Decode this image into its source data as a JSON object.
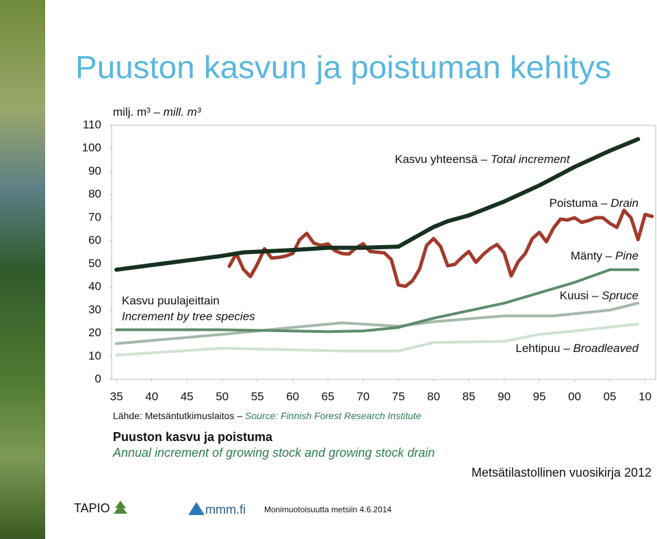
{
  "title": "Puuston kasvun ja poistuman kehitys",
  "chart_data": {
    "type": "line",
    "unit_label": "milj. m³ –",
    "unit_label_en": "mill. m³",
    "group_label": "Kasvu puulajeittain",
    "group_label_en": "Increment by tree species",
    "xlim": [
      1934.3,
      2011.5
    ],
    "xticks": [
      {
        "value": 1935,
        "label": "35"
      },
      {
        "value": 1940,
        "label": "40"
      },
      {
        "value": 1945,
        "label": "45"
      },
      {
        "value": 1950,
        "label": "50"
      },
      {
        "value": 1955,
        "label": "55"
      },
      {
        "value": 1960,
        "label": "60"
      },
      {
        "value": 1965,
        "label": "65"
      },
      {
        "value": 1970,
        "label": "70"
      },
      {
        "value": 1975,
        "label": "75"
      },
      {
        "value": 1980,
        "label": "80"
      },
      {
        "value": 1985,
        "label": "85"
      },
      {
        "value": 1990,
        "label": "90"
      },
      {
        "value": 1995,
        "label": "95"
      },
      {
        "value": 2000,
        "label": "00"
      },
      {
        "value": 2005,
        "label": "05"
      },
      {
        "value": 2010,
        "label": "10"
      }
    ],
    "ylim": [
      0,
      110
    ],
    "yticks": [
      0,
      10,
      20,
      30,
      40,
      50,
      60,
      70,
      80,
      90,
      100,
      110
    ],
    "grid": false,
    "series": [
      {
        "name": "Lehtipuu –",
        "name_en": "Broadleaved",
        "color": "#cfe2d1",
        "x": [
          1935,
          1950,
          1960,
          1967,
          1975,
          1980,
          1990,
          1995,
          2000,
          2009
        ],
        "values": [
          10.5,
          13.5,
          12.8,
          12.3,
          12.3,
          16,
          16.5,
          19.5,
          21,
          24
        ]
      },
      {
        "name": "Kuusi –",
        "name_en": "Spruce",
        "color": "#a3b9a8",
        "x": [
          1935,
          1950,
          1960,
          1967,
          1975,
          1980,
          1990,
          1997,
          2005,
          2009
        ],
        "values": [
          15.5,
          19.5,
          22.5,
          24.5,
          23,
          25,
          27.5,
          27.5,
          30,
          33
        ]
      },
      {
        "name": "Mänty –",
        "name_en": "Pine",
        "color": "#5e8c6b",
        "x": [
          1935,
          1950,
          1960,
          1965,
          1970,
          1975,
          1980,
          1990,
          2000,
          2005,
          2009
        ],
        "values": [
          21.5,
          21.5,
          21,
          20.7,
          21,
          22.5,
          26.5,
          33,
          42,
          47.5,
          47.5
        ]
      },
      {
        "name": "Poistuma –",
        "name_en": "Drain",
        "color": "#a23a2b",
        "x": [
          1951,
          1952,
          1953,
          1954,
          1955,
          1956,
          1957,
          1958,
          1959,
          1960,
          1961,
          1962,
          1963,
          1964,
          1965,
          1966,
          1967,
          1968,
          1969,
          1970,
          1971,
          1972,
          1973,
          1974,
          1975,
          1976,
          1977,
          1978,
          1979,
          1980,
          1981,
          1982,
          1983,
          1984,
          1985,
          1986,
          1987,
          1988,
          1989,
          1990,
          1991,
          1992,
          1993,
          1994,
          1995,
          1996,
          1997,
          1998,
          1999,
          2000,
          2001,
          2002,
          2003,
          2004,
          2005,
          2006,
          2007,
          2008,
          2009,
          2010,
          2011
        ],
        "values": [
          49,
          54.5,
          47.7,
          44.5,
          50,
          56.6,
          52.5,
          52.8,
          53.4,
          54.5,
          60.5,
          63.2,
          59,
          58,
          58.7,
          55.7,
          54.5,
          54.3,
          57,
          58.7,
          55.4,
          55.1,
          54.8,
          51.9,
          40.9,
          40.3,
          42.7,
          47.7,
          58,
          61,
          57.5,
          49.2,
          49.8,
          52.8,
          55.4,
          50.7,
          54,
          56.6,
          58.4,
          54.8,
          44.8,
          51,
          54.5,
          61,
          63.7,
          59.6,
          65.5,
          69.4,
          69,
          70,
          68,
          68.8,
          70,
          70,
          67.6,
          65.8,
          73.2,
          70,
          60.5,
          71.4,
          70.6
        ]
      },
      {
        "name": "Kasvu yhteensä –",
        "name_en": "Total increment",
        "color": "#17301f",
        "x": [
          1935,
          1940,
          1945,
          1950,
          1953,
          1960,
          1965,
          1970,
          1975,
          1980,
          1982,
          1985,
          1990,
          1995,
          2000,
          2005,
          2009
        ],
        "values": [
          47.5,
          49.5,
          51.5,
          53.5,
          55,
          56,
          57,
          57,
          57.5,
          66,
          68.5,
          71,
          77,
          84,
          92,
          99,
          104
        ]
      }
    ],
    "source": "Lähde: Metsäntutkimuslaitos –",
    "source_en": "Source: Finnish Forest Research Institute",
    "caption": "Puuston kasvu ja poistuma",
    "caption_en": "Annual increment of growing stock and growing stock drain",
    "publication": "Metsätilastollinen vuosikirja 2012"
  },
  "footer": {
    "logo_left": "TAPIO",
    "logo_mid": "mmm.fi",
    "text": "Monimuotoisuutta metsiin 4.6.2014"
  }
}
